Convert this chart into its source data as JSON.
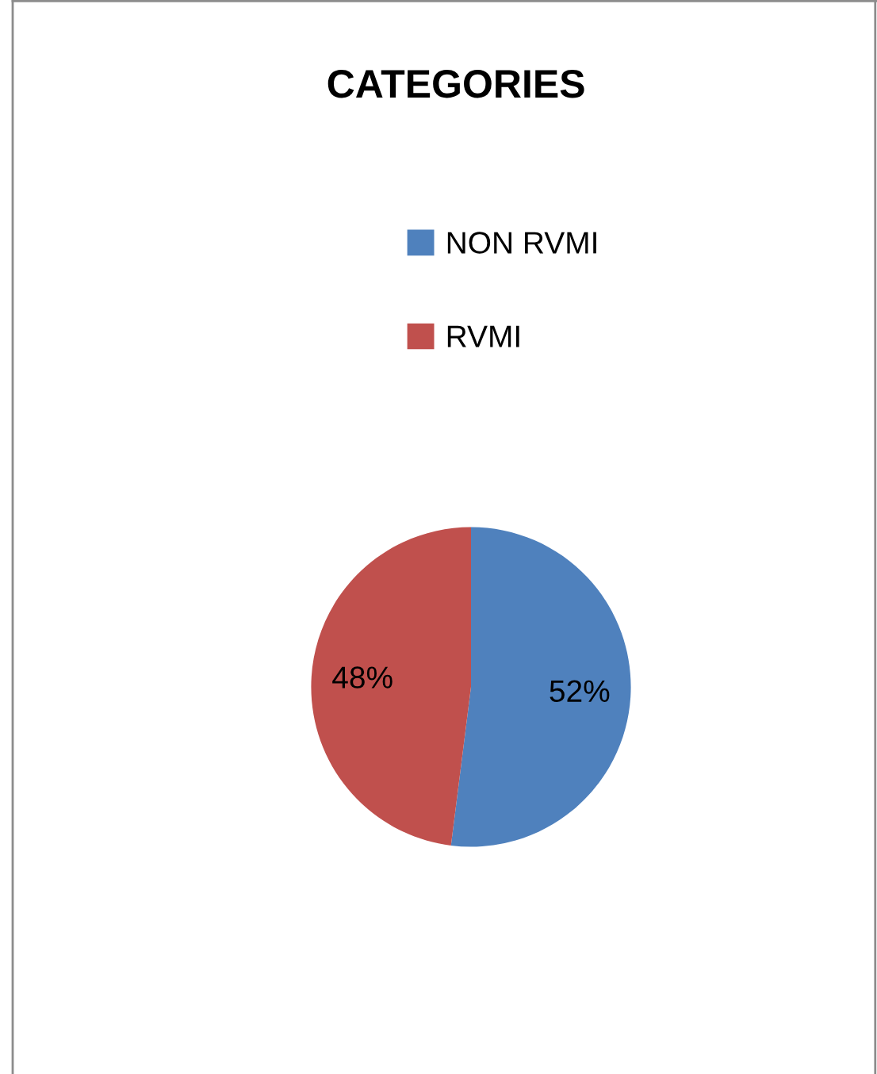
{
  "chart_data": {
    "type": "pie",
    "title": "CATEGORIES",
    "categories": [
      "NON RVMI",
      "RVMI"
    ],
    "values": [
      52,
      48
    ],
    "colors": [
      "#4f81bd",
      "#c0504d"
    ],
    "value_labels": [
      "52%",
      "48%"
    ],
    "legend": "top"
  }
}
